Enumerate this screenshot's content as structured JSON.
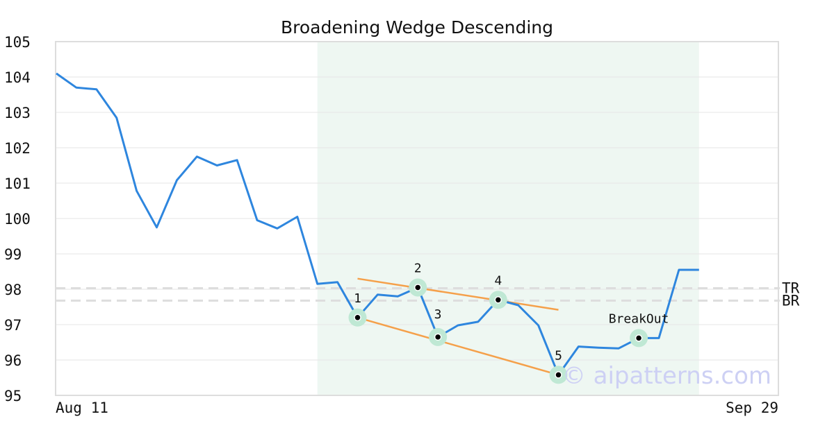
{
  "chart_data": {
    "type": "line",
    "title": "Broadening Wedge Descending",
    "xlabel": "",
    "ylabel": "",
    "ylim": [
      95,
      105
    ],
    "yticks": [
      95,
      96,
      97,
      98,
      99,
      100,
      101,
      102,
      103,
      104,
      105
    ],
    "x_tick_labels": [
      "Aug 11",
      "Sep 29"
    ],
    "grid": true,
    "series": [
      {
        "values": [
          104.1,
          103.7,
          103.65,
          102.85,
          100.78,
          99.75,
          101.08,
          101.75,
          101.5,
          101.65,
          99.95,
          99.72,
          100.05,
          98.15,
          98.2,
          97.2,
          97.85,
          97.8,
          98.05,
          96.65,
          96.98,
          97.08,
          97.7,
          97.55,
          96.98,
          95.58,
          96.38,
          96.35,
          96.33,
          96.62,
          96.62,
          98.55,
          98.55
        ]
      }
    ],
    "highlight_region": {
      "from_index": 13,
      "to_index": 32
    },
    "pattern_points": [
      {
        "label": "1",
        "index": 15,
        "value": 97.2
      },
      {
        "label": "2",
        "index": 18,
        "value": 98.05
      },
      {
        "label": "3",
        "index": 19,
        "value": 96.65
      },
      {
        "label": "4",
        "index": 22,
        "value": 97.7
      },
      {
        "label": "5",
        "index": 25,
        "value": 95.58
      },
      {
        "label": "BreakOut",
        "index": 29,
        "value": 96.62
      }
    ],
    "trend_lines": [
      {
        "from_index": 15,
        "from_value": 98.3,
        "to_index": 25,
        "to_value": 97.42
      },
      {
        "from_index": 15,
        "from_value": 97.2,
        "to_index": 25,
        "to_value": 95.58
      }
    ],
    "reference_lines": [
      {
        "label": "TR",
        "value": 98.03
      },
      {
        "label": "BR",
        "value": 97.68
      }
    ],
    "watermark": "© aipatterns.com",
    "colors": {
      "line": "#2e86de",
      "trend": "#f5a04a",
      "highlight": "#eef7f2",
      "marker_halo": "#bfe8d4",
      "reference": "#dddddd",
      "grid": "#e6e6e6",
      "frame": "#dddddd",
      "watermark": "#cdd0f4"
    }
  }
}
